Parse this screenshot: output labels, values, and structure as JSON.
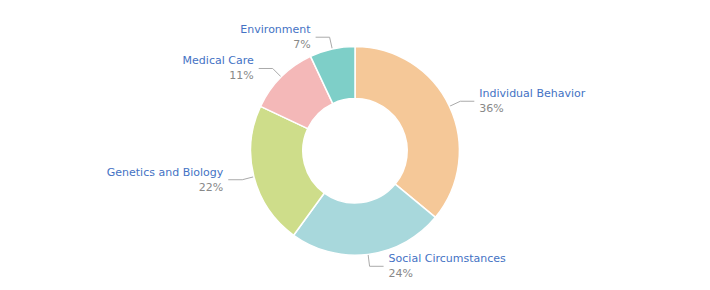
{
  "chart_data": {
    "type": "pie",
    "categories": [
      "Individual Behavior",
      "Social Circumstances",
      "Genetics and Biology",
      "Medical Care",
      "Environment"
    ],
    "values": [
      36,
      24,
      22,
      11,
      7
    ],
    "value_labels": [
      "36%",
      "24%",
      "22%",
      "11%",
      "7%"
    ],
    "colors": [
      "#F5C898",
      "#A8D8DC",
      "#CEDD8A",
      "#F4B8B8",
      "#7ECFC8"
    ],
    "data_labels": true
  }
}
